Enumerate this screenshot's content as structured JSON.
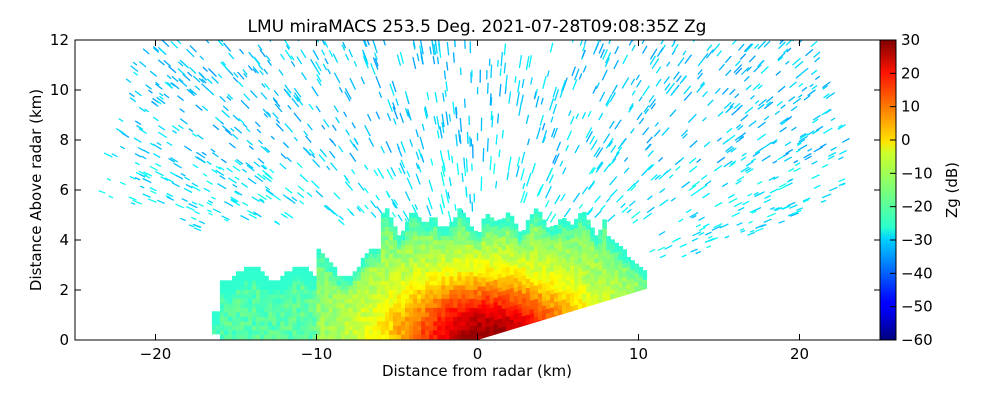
{
  "chart_data": {
    "type": "heatmap",
    "subtype": "RHI radar scan",
    "title": "LMU miraMACS 253.5 Deg. 2021-07-28T09:08:35Z  Zg",
    "xlabel": "Distance from radar (km)",
    "ylabel": "Distance Above radar  (km)",
    "xlim": [
      -25,
      25
    ],
    "ylim": [
      0,
      12
    ],
    "xticks": [
      -20,
      -10,
      0,
      10,
      20
    ],
    "yticks": [
      0,
      2,
      4,
      6,
      8,
      10,
      12
    ],
    "colorbar": {
      "label": "Zg (dB)",
      "range": [
        -60,
        30
      ],
      "ticks": [
        30,
        20,
        10,
        0,
        -10,
        -20,
        -30,
        -40,
        -50,
        -60
      ],
      "colormap": "jet"
    },
    "features": {
      "radar_location_km": [
        0,
        0
      ],
      "noise_speckle_value_db": -28,
      "noise_max_range_km": 24,
      "noise_beam_elevation_min_deg": 14,
      "cloud_x_range_km": [
        -16.5,
        10.5
      ],
      "cloud_top_km": 5.2,
      "cloud_core_max_db": 28,
      "cloud_edge_db": -22
    }
  }
}
